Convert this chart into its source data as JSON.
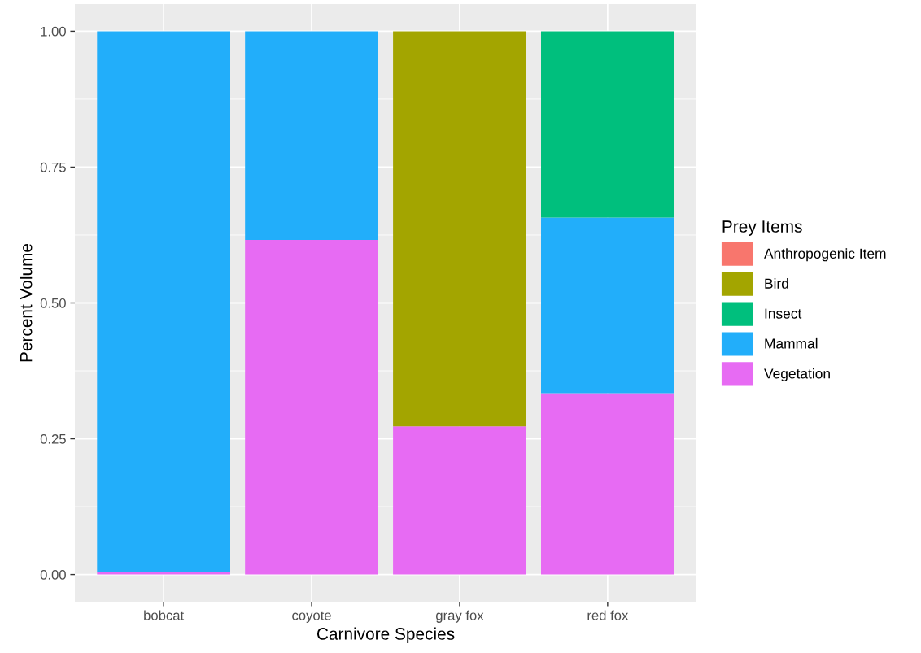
{
  "chart_data": {
    "type": "bar",
    "xlabel": "Carnivore Species",
    "ylabel": "Percent Volume",
    "legend_title": "Prey Items",
    "categories": [
      "bobcat",
      "coyote",
      "gray fox",
      "red fox"
    ],
    "stacked": true,
    "series": [
      {
        "name": "Vegetation",
        "color": "#e76bf3",
        "values": [
          0.005,
          0.616,
          0.273,
          0.334
        ]
      },
      {
        "name": "Mammal",
        "color": "#22aefa",
        "values": [
          0.995,
          0.384,
          0,
          0.323
        ]
      },
      {
        "name": "Insect",
        "color": "#00bf7d",
        "values": [
          0,
          0,
          0,
          0.343
        ]
      },
      {
        "name": "Bird",
        "color": "#a3a500",
        "values": [
          0,
          0,
          0.727,
          0
        ]
      },
      {
        "name": "Anthropogenic Item",
        "color": "#f8766d",
        "values": [
          0,
          0,
          0,
          0
        ]
      }
    ],
    "ylim": [
      -0.05,
      1.05
    ],
    "yticks": [
      {
        "value": 0,
        "label": "0.00"
      },
      {
        "value": 0.25,
        "label": "0.25"
      },
      {
        "value": 0.5,
        "label": "0.50"
      },
      {
        "value": 0.75,
        "label": "0.75"
      },
      {
        "value": 1,
        "label": "1.00"
      }
    ],
    "grid": true,
    "legend": "right"
  }
}
